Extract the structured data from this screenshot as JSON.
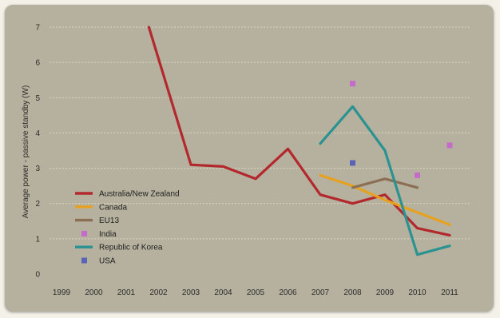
{
  "chart_data": {
    "type": "line",
    "title": "",
    "xlabel": "",
    "ylabel": "Average power - passive standby (W)",
    "categories": [
      "1999",
      "2000",
      "2001",
      "2002",
      "2003",
      "2004",
      "2005",
      "2006",
      "2007",
      "2008",
      "2009",
      "2010",
      "2011"
    ],
    "ylim": [
      0,
      7
    ],
    "yticks": [
      "0",
      "1",
      "2",
      "3",
      "4",
      "5",
      "6",
      "7"
    ],
    "grid": "horizontal",
    "legend_position": "bottom-left",
    "series": [
      {
        "name": "Australia/New Zealand",
        "kind": "line",
        "color": "#b3282d",
        "points": [
          [
            2001.7,
            7.0
          ],
          [
            2003,
            3.1
          ],
          [
            2004,
            3.05
          ],
          [
            2005,
            2.7
          ],
          [
            2006,
            3.55
          ],
          [
            2007,
            2.25
          ],
          [
            2008,
            2.0
          ],
          [
            2009,
            2.25
          ],
          [
            2010,
            1.3
          ],
          [
            2011,
            1.1
          ]
        ]
      },
      {
        "name": "Canada",
        "kind": "line",
        "color": "#e6a21f",
        "points": [
          [
            2007,
            2.8
          ],
          [
            2008,
            2.5
          ],
          [
            2009,
            2.1
          ],
          [
            2010,
            1.75
          ],
          [
            2011,
            1.4
          ]
        ]
      },
      {
        "name": "EU13",
        "kind": "line",
        "color": "#8b6f55",
        "points": [
          [
            2008,
            2.45
          ],
          [
            2009,
            2.7
          ],
          [
            2010,
            2.45
          ]
        ]
      },
      {
        "name": "India",
        "kind": "marker",
        "color": "#c56bc9",
        "points": [
          [
            2008,
            5.4
          ],
          [
            2010,
            2.8
          ],
          [
            2011,
            3.65
          ]
        ]
      },
      {
        "name": "Republic of Korea",
        "kind": "line",
        "color": "#2a9391",
        "points": [
          [
            2007,
            3.7
          ],
          [
            2008,
            4.75
          ],
          [
            2009,
            3.5
          ],
          [
            2010,
            0.55
          ],
          [
            2011,
            0.8
          ]
        ]
      },
      {
        "name": "USA",
        "kind": "marker",
        "color": "#5a63b5",
        "points": [
          [
            2008,
            3.15
          ]
        ]
      }
    ]
  }
}
